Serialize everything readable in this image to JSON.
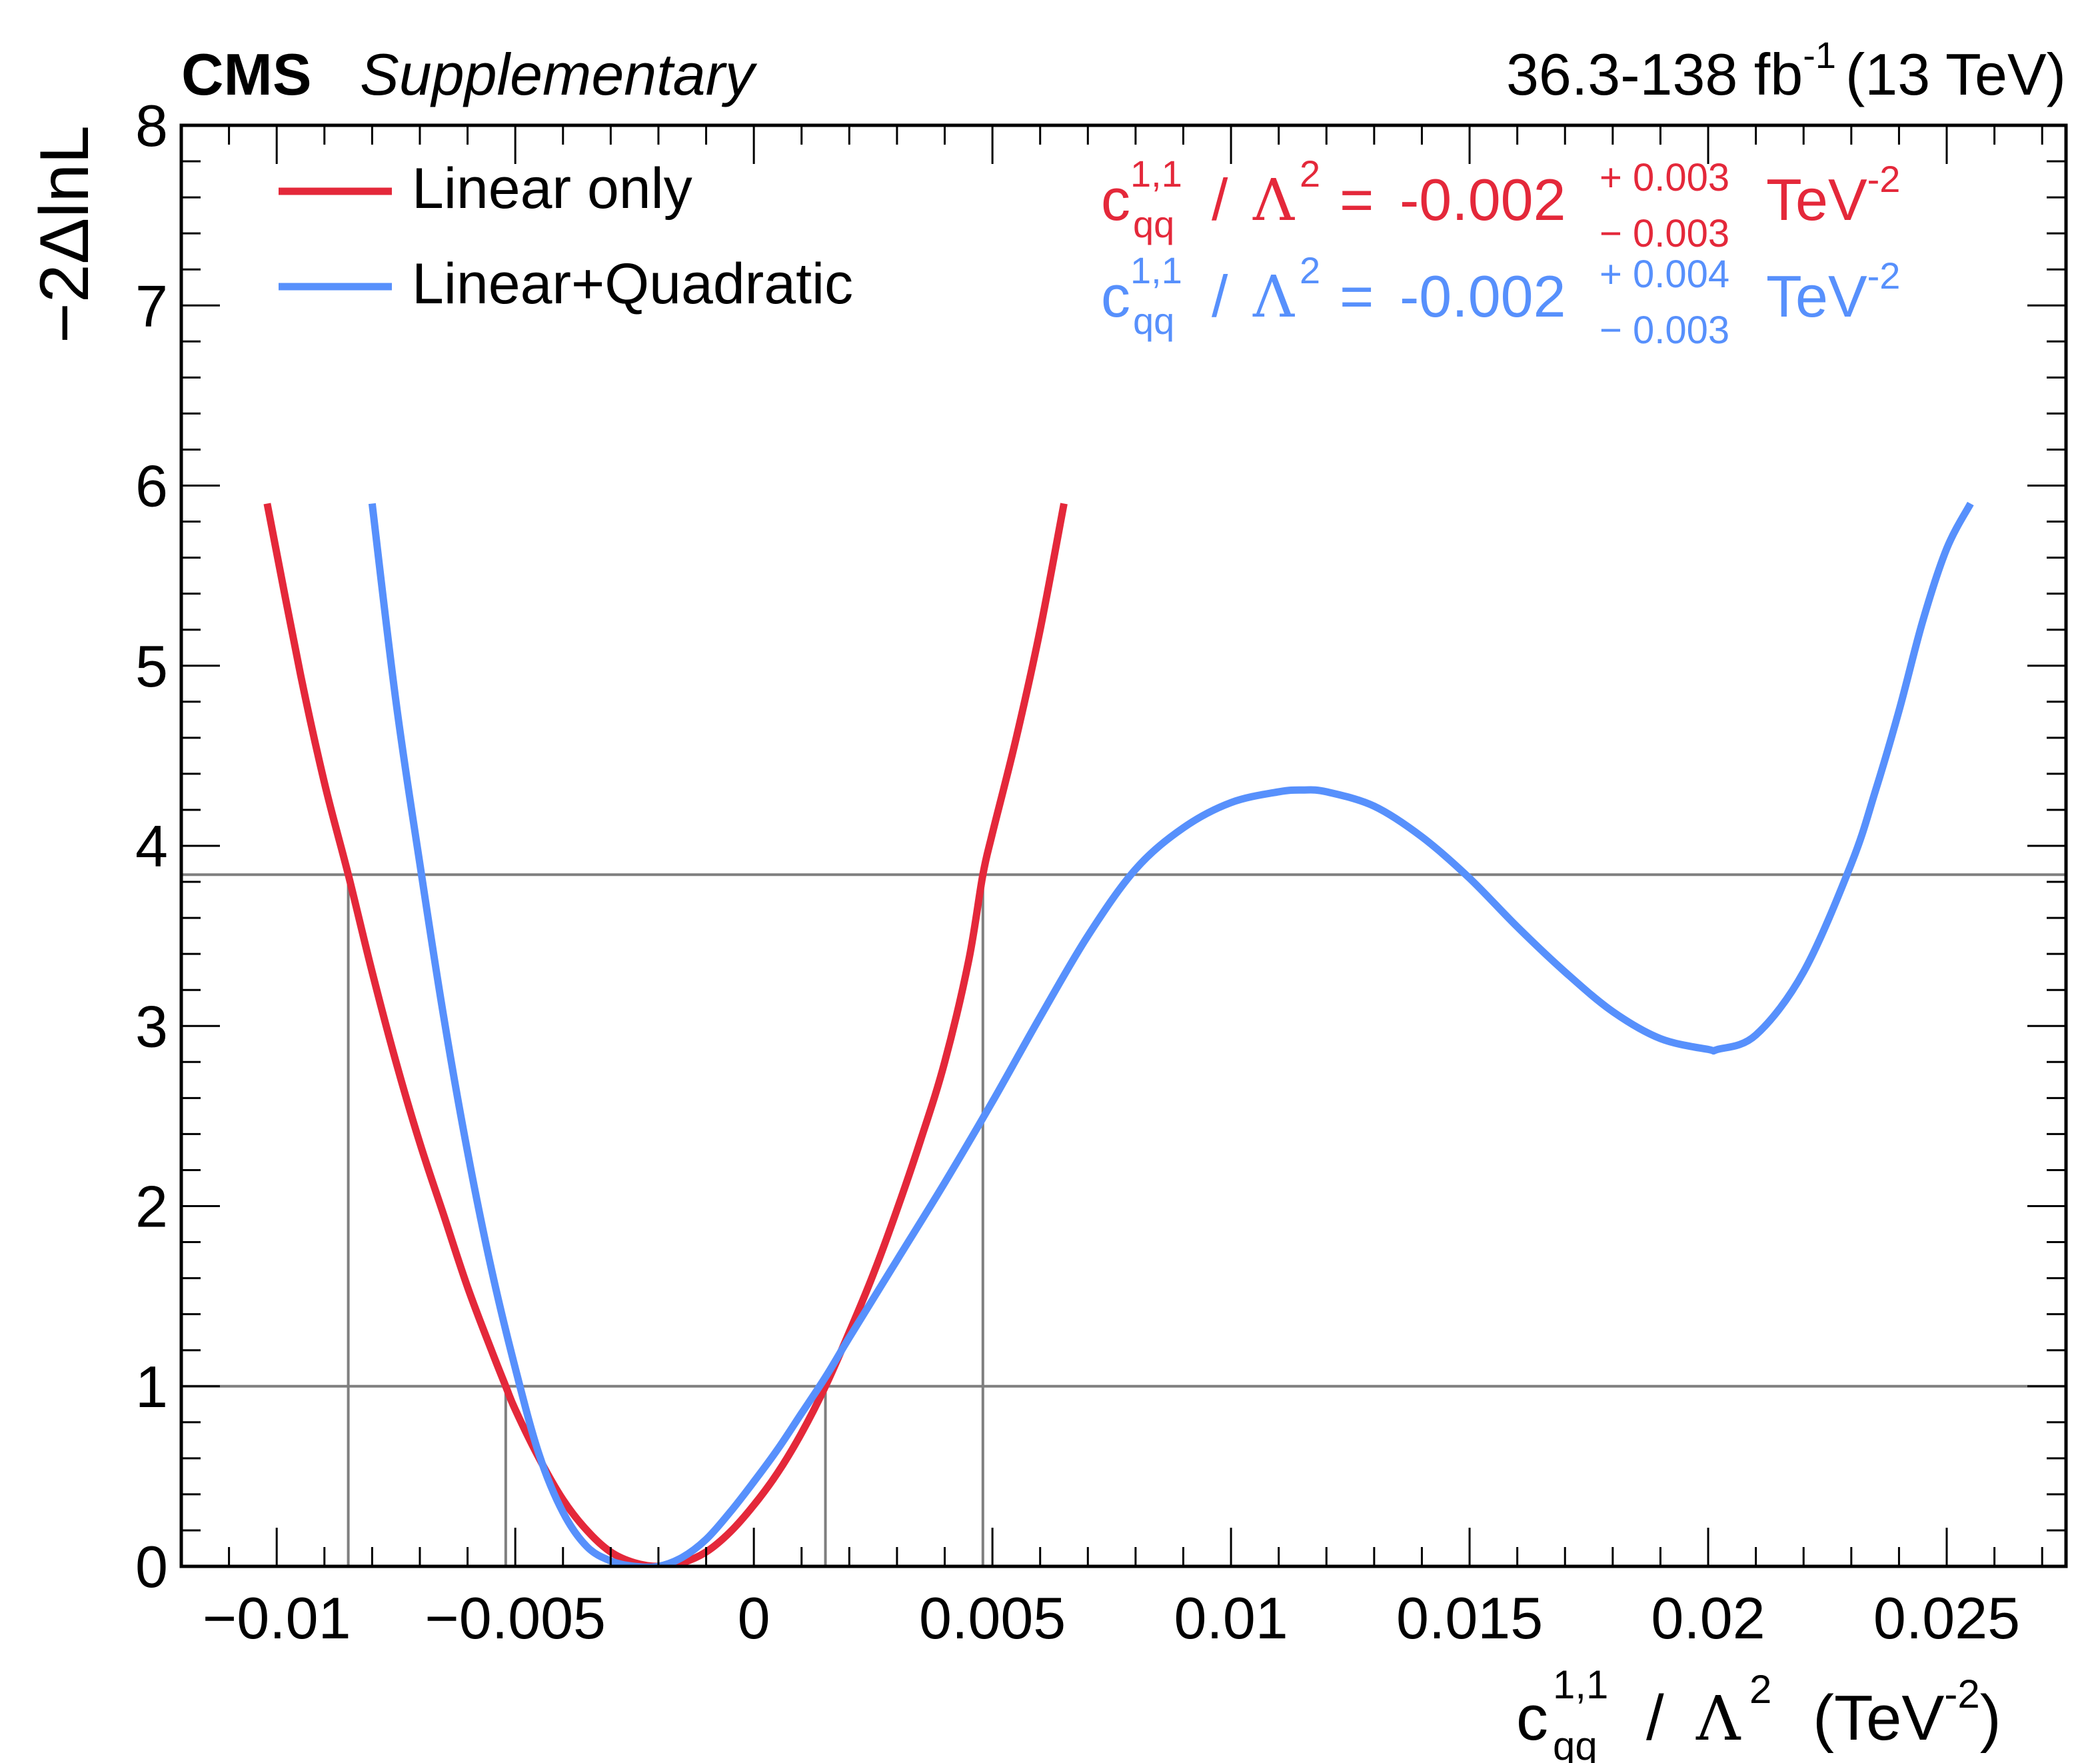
{
  "header": {
    "experiment": "CMS",
    "tag": "Supplementary",
    "lumi_main": "36.3-138 fb",
    "lumi_exp": "-1",
    "energy": "(13 TeV)"
  },
  "colors": {
    "linear": "#e4283a",
    "quadratic": "#5790fc",
    "reference": "#7f7f7f",
    "axis": "#000000"
  },
  "chart_data": {
    "type": "line",
    "title": "",
    "xlabel": "c_qq^{1,1} / Λ^2 (TeV^-2)",
    "xlabel_parts": {
      "c": "c",
      "sup": "1,1",
      "sub": "qq",
      "slash": "/",
      "lambda": "Λ",
      "lambda_sup": "2",
      "unit_open": "(TeV",
      "unit_sup": "-2",
      "unit_close": ")"
    },
    "ylabel": "−2ΔlnL",
    "xlim": [
      -0.012,
      0.0275
    ],
    "ylim": [
      0,
      8
    ],
    "x_ticks": [
      -0.01,
      -0.005,
      0,
      0.005,
      0.01,
      0.015,
      0.02,
      0.025
    ],
    "x_tick_labels": [
      "−0.01",
      "−0.005",
      "0",
      "0.005",
      "0.01",
      "0.015",
      "0.02",
      "0.025"
    ],
    "y_ticks": [
      0,
      1,
      2,
      3,
      4,
      5,
      6,
      7,
      8
    ],
    "y_tick_labels": [
      "0",
      "1",
      "2",
      "3",
      "4",
      "5",
      "6",
      "7",
      "8"
    ],
    "reference_lines": [
      1,
      3.84
    ],
    "interval_markers": [
      -0.0085,
      -0.0052,
      0.0015,
      0.0048
    ],
    "legend_position": "top-left",
    "series": [
      {
        "name": "Linear only",
        "best_fit": -0.002,
        "err_up": 0.003,
        "err_down": 0.003,
        "result": {
          "value": "-0.002",
          "up": "+ 0.003",
          "down": "− 0.003",
          "unit": "TeV",
          "unit_exp": "-2"
        },
        "x": [
          -0.0102,
          -0.0095,
          -0.009,
          -0.0085,
          -0.008,
          -0.0075,
          -0.007,
          -0.0065,
          -0.006,
          -0.0055,
          -0.0052,
          -0.005,
          -0.0045,
          -0.004,
          -0.0035,
          -0.003,
          -0.0025,
          -0.002,
          -0.0015,
          -0.001,
          -0.0005,
          0.0,
          0.0005,
          0.001,
          0.0015,
          0.002,
          0.0025,
          0.003,
          0.0035,
          0.004,
          0.0045,
          0.0048,
          0.005,
          0.0055,
          0.006,
          0.0065
        ],
        "y": [
          5.9,
          4.95,
          4.35,
          3.84,
          3.3,
          2.8,
          2.35,
          1.95,
          1.55,
          1.2,
          1.0,
          0.87,
          0.6,
          0.37,
          0.2,
          0.08,
          0.02,
          0.0,
          0.02,
          0.08,
          0.19,
          0.34,
          0.52,
          0.74,
          1.0,
          1.3,
          1.62,
          1.98,
          2.37,
          2.8,
          3.36,
          3.84,
          4.07,
          4.6,
          5.2,
          5.9
        ]
      },
      {
        "name": "Linear+Quadratic",
        "best_fit": -0.002,
        "err_up": 0.004,
        "err_down": 0.003,
        "result": {
          "value": "-0.002",
          "up": "+ 0.004",
          "down": "− 0.003",
          "unit": "TeV",
          "unit_exp": "-2"
        },
        "x": [
          -0.008,
          -0.0075,
          -0.007,
          -0.0065,
          -0.006,
          -0.0055,
          -0.005,
          -0.0045,
          -0.004,
          -0.0035,
          -0.003,
          -0.0025,
          -0.002,
          -0.0015,
          -0.001,
          -0.0005,
          0.0,
          0.0005,
          0.001,
          0.0015,
          0.002,
          0.003,
          0.004,
          0.005,
          0.006,
          0.007,
          0.008,
          0.009,
          0.01,
          0.011,
          0.0115,
          0.012,
          0.013,
          0.014,
          0.015,
          0.016,
          0.017,
          0.018,
          0.019,
          0.02,
          0.0202,
          0.021,
          0.022,
          0.023,
          0.0235,
          0.024,
          0.0245,
          0.025,
          0.0255
        ],
        "y": [
          5.9,
          4.8,
          3.9,
          3.05,
          2.3,
          1.65,
          1.1,
          0.62,
          0.3,
          0.11,
          0.03,
          0.0,
          0.0,
          0.05,
          0.15,
          0.3,
          0.47,
          0.65,
          0.85,
          1.05,
          1.27,
          1.7,
          2.13,
          2.58,
          3.05,
          3.5,
          3.87,
          4.1,
          4.24,
          4.3,
          4.31,
          4.3,
          4.22,
          4.05,
          3.82,
          3.55,
          3.3,
          3.08,
          2.93,
          2.87,
          2.87,
          2.95,
          3.3,
          3.9,
          4.3,
          4.75,
          5.25,
          5.65,
          5.9
        ]
      }
    ]
  }
}
